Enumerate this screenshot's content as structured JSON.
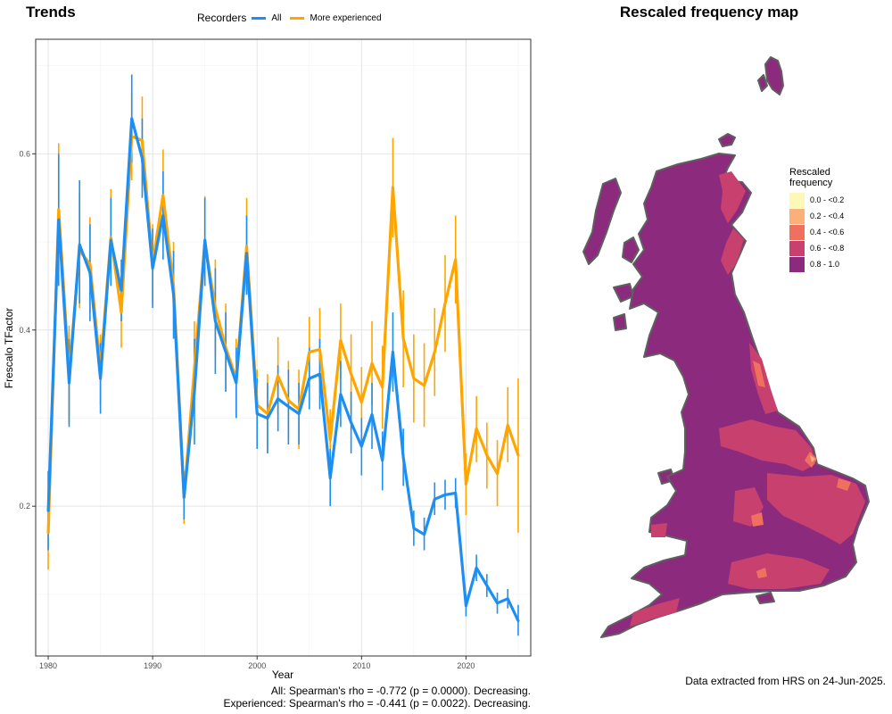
{
  "chart_data": [
    {
      "type": "line",
      "title": "Trends",
      "xlabel": "Year",
      "ylabel": "Frescalo TFactor",
      "xlim": [
        1978.8,
        2026.2
      ],
      "ylim": [
        0.03,
        0.73
      ],
      "x_ticks": [
        1980,
        1990,
        2000,
        2010,
        2020
      ],
      "y_ticks": [
        0.2,
        0.4,
        0.6
      ],
      "y_tick_labels": [
        "0.2",
        "0.4",
        "0.6"
      ],
      "grid": true,
      "legend": {
        "title": "Recorders",
        "position": "top"
      },
      "x": [
        1980,
        1981,
        1982,
        1983,
        1984,
        1985,
        1986,
        1987,
        1988,
        1989,
        1990,
        1991,
        1992,
        1993,
        1994,
        1995,
        1996,
        1997,
        1998,
        1999,
        2000,
        2001,
        2002,
        2003,
        2004,
        2005,
        2006,
        2007,
        2008,
        2009,
        2010,
        2011,
        2012,
        2013,
        2014,
        2015,
        2016,
        2017,
        2018,
        2019,
        2020,
        2021,
        2022,
        2023,
        2024,
        2025
      ],
      "series": [
        {
          "name": "All",
          "color": "#1f8ef1",
          "values": [
            0.195,
            0.525,
            0.34,
            0.497,
            0.465,
            0.345,
            0.502,
            0.445,
            0.64,
            0.595,
            0.47,
            0.53,
            0.44,
            0.21,
            0.33,
            0.502,
            0.41,
            0.375,
            0.34,
            0.487,
            0.305,
            0.3,
            0.322,
            0.313,
            0.305,
            0.345,
            0.35,
            0.232,
            0.327,
            0.295,
            0.268,
            0.304,
            0.252,
            0.375,
            0.255,
            0.175,
            0.168,
            0.208,
            0.213,
            0.215,
            0.087,
            0.13,
            0.11,
            0.09,
            0.095,
            0.07
          ],
          "lower": [
            0.15,
            0.45,
            0.29,
            0.43,
            0.41,
            0.305,
            0.45,
            0.41,
            0.59,
            0.55,
            0.425,
            0.48,
            0.39,
            0.185,
            0.27,
            0.45,
            0.35,
            0.33,
            0.3,
            0.44,
            0.265,
            0.26,
            0.285,
            0.27,
            0.27,
            0.31,
            0.31,
            0.2,
            0.29,
            0.26,
            0.235,
            0.265,
            0.218,
            0.33,
            0.223,
            0.155,
            0.15,
            0.19,
            0.196,
            0.198,
            0.075,
            0.115,
            0.097,
            0.078,
            0.084,
            0.053
          ],
          "upper": [
            0.24,
            0.6,
            0.39,
            0.57,
            0.52,
            0.385,
            0.55,
            0.48,
            0.69,
            0.64,
            0.515,
            0.58,
            0.49,
            0.235,
            0.39,
            0.55,
            0.47,
            0.42,
            0.38,
            0.53,
            0.345,
            0.34,
            0.36,
            0.355,
            0.34,
            0.38,
            0.39,
            0.265,
            0.365,
            0.33,
            0.3,
            0.34,
            0.285,
            0.42,
            0.288,
            0.195,
            0.187,
            0.227,
            0.23,
            0.232,
            0.1,
            0.145,
            0.123,
            0.102,
            0.106,
            0.088
          ]
        },
        {
          "name": "More experienced",
          "color": "#ffa500",
          "values": [
            0.17,
            0.537,
            0.35,
            0.49,
            0.475,
            0.355,
            0.505,
            0.42,
            0.62,
            0.615,
            0.475,
            0.553,
            0.45,
            0.21,
            0.357,
            0.5,
            0.425,
            0.38,
            0.345,
            0.495,
            0.315,
            0.305,
            0.348,
            0.32,
            0.31,
            0.375,
            0.378,
            0.275,
            0.388,
            0.35,
            0.318,
            0.362,
            0.335,
            0.562,
            0.39,
            0.345,
            0.337,
            0.375,
            0.43,
            0.48,
            0.225,
            0.288,
            0.258,
            0.237,
            0.292,
            0.258
          ],
          "lower": [
            0.128,
            0.465,
            0.295,
            0.425,
            0.42,
            0.315,
            0.45,
            0.38,
            0.57,
            0.565,
            0.43,
            0.5,
            0.4,
            0.18,
            0.305,
            0.45,
            0.37,
            0.33,
            0.3,
            0.44,
            0.275,
            0.26,
            0.305,
            0.275,
            0.265,
            0.335,
            0.33,
            0.24,
            0.345,
            0.305,
            0.278,
            0.315,
            0.288,
            0.505,
            0.335,
            0.295,
            0.29,
            0.325,
            0.375,
            0.43,
            0.19,
            0.25,
            0.22,
            0.2,
            0.25,
            0.17
          ],
          "upper": [
            0.21,
            0.612,
            0.405,
            0.555,
            0.528,
            0.395,
            0.56,
            0.46,
            0.67,
            0.665,
            0.52,
            0.605,
            0.5,
            0.24,
            0.41,
            0.552,
            0.48,
            0.43,
            0.39,
            0.55,
            0.355,
            0.35,
            0.392,
            0.365,
            0.355,
            0.415,
            0.425,
            0.31,
            0.43,
            0.395,
            0.358,
            0.41,
            0.382,
            0.618,
            0.445,
            0.395,
            0.385,
            0.425,
            0.485,
            0.53,
            0.26,
            0.325,
            0.295,
            0.275,
            0.335,
            0.345
          ]
        }
      ],
      "annotations": [
        "All: Spearman's rho = -0.772 (p = 0.0000). Decreasing.",
        "Experienced: Spearman's rho = -0.441 (p = 0.0022). Decreasing."
      ]
    },
    {
      "type": "heatmap",
      "title": "Rescaled frequency map",
      "legend": {
        "title": "Rescaled frequency",
        "title_lines": [
          "Rescaled",
          "frequency"
        ],
        "position": "right",
        "bins": [
          "0.0 - <0.2",
          "0.2 - <0.4",
          "0.4 - <0.6",
          "0.6 - <0.8",
          "0.8 - 1.0"
        ],
        "colors": [
          "#fcf8b5",
          "#fbb07a",
          "#f07060",
          "#c8406e",
          "#8c2a7e"
        ]
      }
    }
  ],
  "credit": "Data extracted from HRS on 24-Jun-2025."
}
